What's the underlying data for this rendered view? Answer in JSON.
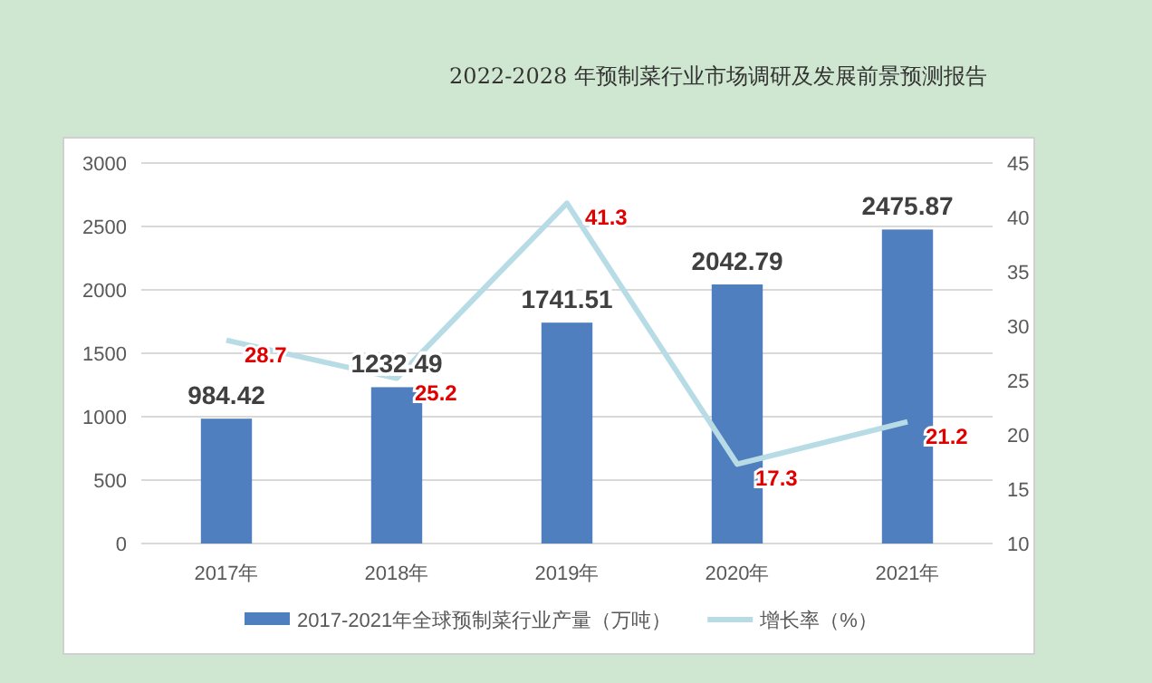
{
  "chart_data": {
    "type": "bar",
    "title": "2022-2028 年预制菜行业市场调研及发展前景预测报告",
    "categories": [
      "2017年",
      "2018年",
      "2019年",
      "2020年",
      "2021年"
    ],
    "series": [
      {
        "name": "2017-2021年全球预制菜行业产量（万吨）",
        "color": "#4f7fbe",
        "values": [
          984.42,
          1232.49,
          1741.51,
          2042.79,
          2475.87
        ]
      },
      {
        "name": "增长率（%）",
        "type": "line",
        "axis": "y2",
        "color": "#b8dce6",
        "values": [
          28.7,
          25.2,
          41.3,
          17.3,
          21.2
        ]
      }
    ],
    "ylim": [
      0,
      3000
    ],
    "yticks": [
      0,
      500,
      1000,
      1500,
      2000,
      2500,
      3000
    ],
    "y2lim": [
      10,
      45
    ],
    "y2ticks": [
      10,
      15,
      20,
      25,
      30,
      35,
      40,
      45
    ],
    "grid": "y",
    "legend": "bottom",
    "data_labels": true
  }
}
